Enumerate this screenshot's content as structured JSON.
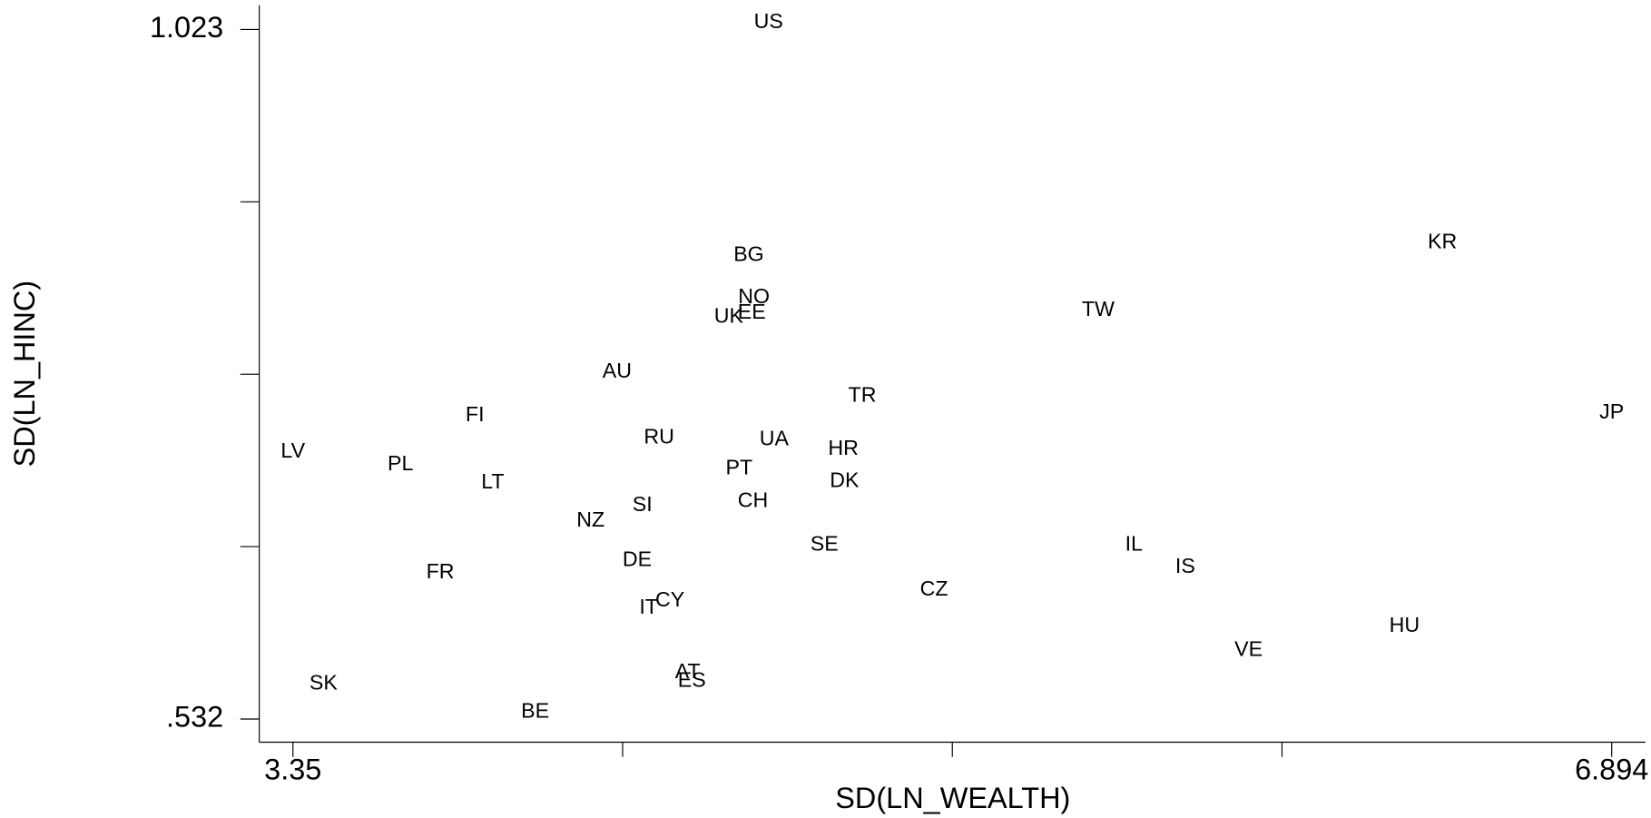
{
  "chart_data": {
    "type": "scatter",
    "xlabel": "SD(LN_WEALTH)",
    "ylabel": "SD(LN_HINC)",
    "color": "#000000",
    "xlim": [
      3.2595,
      6.9845
    ],
    "ylim": [
      0.5155,
      1.0402
    ],
    "xticks": [
      3.35,
      6.894
    ],
    "xminor_ticks": [
      4.236,
      5.122,
      6.008
    ],
    "yticks": [
      {
        "value": 0.532,
        "label": ".532"
      },
      1.023
    ],
    "yminor_ticks": [
      0.65475,
      0.7775,
      0.90025
    ],
    "labels": [
      "US",
      "BG",
      "NO",
      "EE",
      "UK",
      "TW",
      "KR",
      "AU",
      "TR",
      "JP",
      "FI",
      "RU",
      "UA",
      "HR",
      "LV",
      "PL",
      "PT",
      "LT",
      "DK",
      "CH",
      "SI",
      "NZ",
      "IL",
      "SE",
      "IS",
      "DE",
      "FR",
      "CZ",
      "CY",
      "IT",
      "HU",
      "VE",
      "AT",
      "ES",
      "SK",
      "BE"
    ],
    "x": [
      4.628,
      4.575,
      4.589,
      4.583,
      4.521,
      5.514,
      6.439,
      4.221,
      4.88,
      6.894,
      3.839,
      4.334,
      4.643,
      4.829,
      3.35,
      3.639,
      4.549,
      3.887,
      4.832,
      4.586,
      4.289,
      4.15,
      5.61,
      4.778,
      5.748,
      4.275,
      3.746,
      5.073,
      4.363,
      4.306,
      6.337,
      5.918,
      4.411,
      4.422,
      3.432,
      4.001
    ],
    "y": [
      1.028,
      0.862,
      0.832,
      0.821,
      0.818,
      0.823,
      0.871,
      0.779,
      0.762,
      0.75,
      0.748,
      0.732,
      0.731,
      0.724,
      0.722,
      0.713,
      0.71,
      0.7,
      0.701,
      0.687,
      0.684,
      0.673,
      0.656,
      0.656,
      0.64,
      0.645,
      0.636,
      0.624,
      0.616,
      0.611,
      0.598,
      0.581,
      0.565,
      0.559,
      0.557,
      0.537
    ]
  }
}
